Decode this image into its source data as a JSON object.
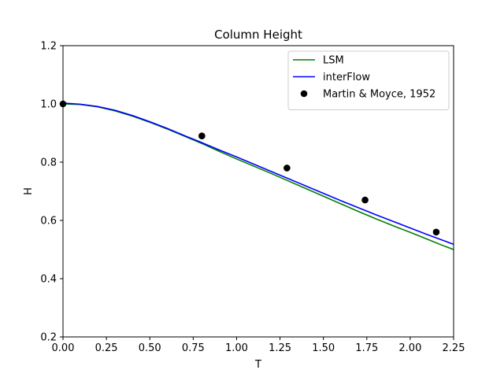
{
  "chart_data": {
    "type": "line",
    "title": "Column Height",
    "xlabel": "T",
    "ylabel": "H",
    "xlim": [
      0.0,
      2.25
    ],
    "ylim": [
      0.2,
      1.2
    ],
    "xticks": [
      0.0,
      0.25,
      0.5,
      0.75,
      1.0,
      1.25,
      1.5,
      1.75,
      2.0,
      2.25
    ],
    "xtick_labels": [
      "0.00",
      "0.25",
      "0.50",
      "0.75",
      "1.00",
      "1.25",
      "1.50",
      "1.75",
      "2.00",
      "2.25"
    ],
    "yticks": [
      0.2,
      0.4,
      0.6,
      0.8,
      1.0,
      1.2
    ],
    "ytick_labels": [
      "0.2",
      "0.4",
      "0.6",
      "0.8",
      "1.0",
      "1.2"
    ],
    "grid": false,
    "legend_position": "top-right",
    "series": [
      {
        "name": "LSM",
        "kind": "line",
        "color": "#008000",
        "x": [
          0.0,
          0.1,
          0.2,
          0.3,
          0.4,
          0.5,
          0.6,
          0.7,
          0.8,
          0.9,
          1.0,
          1.1,
          1.2,
          1.3,
          1.4,
          1.5,
          1.6,
          1.7,
          1.8,
          1.9,
          2.0,
          2.1,
          2.2,
          2.25
        ],
        "y": [
          1.0,
          0.998,
          0.99,
          0.976,
          0.958,
          0.937,
          0.914,
          0.889,
          0.864,
          0.837,
          0.811,
          0.786,
          0.761,
          0.735,
          0.709,
          0.683,
          0.657,
          0.631,
          0.606,
          0.582,
          0.559,
          0.535,
          0.511,
          0.5
        ]
      },
      {
        "name": "interFlow",
        "kind": "line",
        "color": "#0000ff",
        "x": [
          0.0,
          0.1,
          0.2,
          0.3,
          0.4,
          0.5,
          0.6,
          0.7,
          0.8,
          0.9,
          1.0,
          1.1,
          1.2,
          1.3,
          1.4,
          1.5,
          1.6,
          1.7,
          1.8,
          1.9,
          2.0,
          2.1,
          2.2,
          2.25
        ],
        "y": [
          1.003,
          0.999,
          0.991,
          0.978,
          0.96,
          0.939,
          0.916,
          0.891,
          0.867,
          0.842,
          0.818,
          0.793,
          0.768,
          0.743,
          0.718,
          0.693,
          0.668,
          0.644,
          0.62,
          0.597,
          0.574,
          0.551,
          0.529,
          0.518
        ]
      },
      {
        "name": "Martin & Moyce, 1952",
        "kind": "scatter",
        "color": "#000000",
        "x": [
          0.0,
          0.8,
          1.29,
          1.74,
          2.15
        ],
        "y": [
          1.0,
          0.89,
          0.78,
          0.67,
          0.56
        ]
      }
    ]
  }
}
